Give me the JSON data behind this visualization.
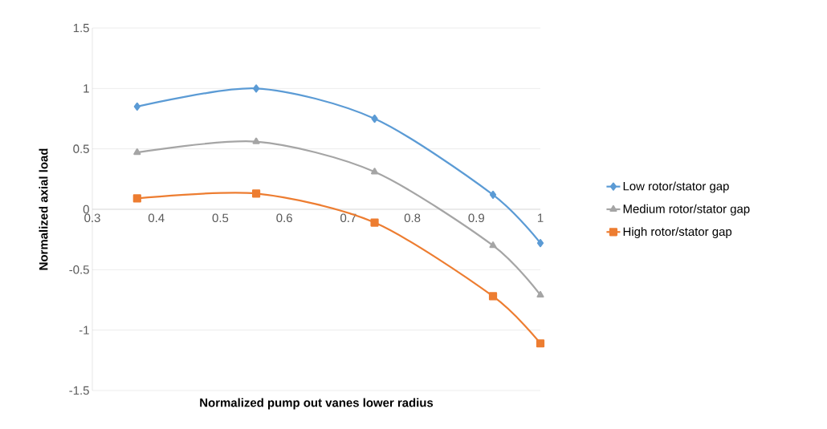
{
  "chart_data": {
    "type": "line",
    "xlabel": "Normalized pump out vanes lower radius",
    "ylabel": "Normalized axial load",
    "x": [
      0.37,
      0.556,
      0.741,
      0.926,
      1
    ],
    "series": [
      {
        "name": "Low rotor/stator gap",
        "color": "#5b9bd5",
        "marker": "diamond",
        "values": [
          0.85,
          1.0,
          0.75,
          0.12,
          -0.28
        ]
      },
      {
        "name": "Medium rotor/stator gap",
        "color": "#a5a5a5",
        "marker": "triangle",
        "values": [
          0.47,
          0.56,
          0.31,
          -0.3,
          -0.71
        ]
      },
      {
        "name": "High rotor/stator gap",
        "color": "#ed7d31",
        "marker": "square",
        "values": [
          0.09,
          0.13,
          -0.11,
          -0.72,
          -1.11
        ]
      }
    ],
    "xlim": [
      0.3,
      1
    ],
    "xticks": [
      0.3,
      0.4,
      0.5,
      0.6,
      0.7,
      0.8,
      0.9,
      1
    ],
    "ylim": [
      -1.5,
      1.5
    ],
    "yticks": [
      -1.5,
      -1,
      -0.5,
      0,
      0.5,
      1,
      1.5
    ],
    "grid": "y",
    "legend": "right",
    "line_style": "solid"
  }
}
